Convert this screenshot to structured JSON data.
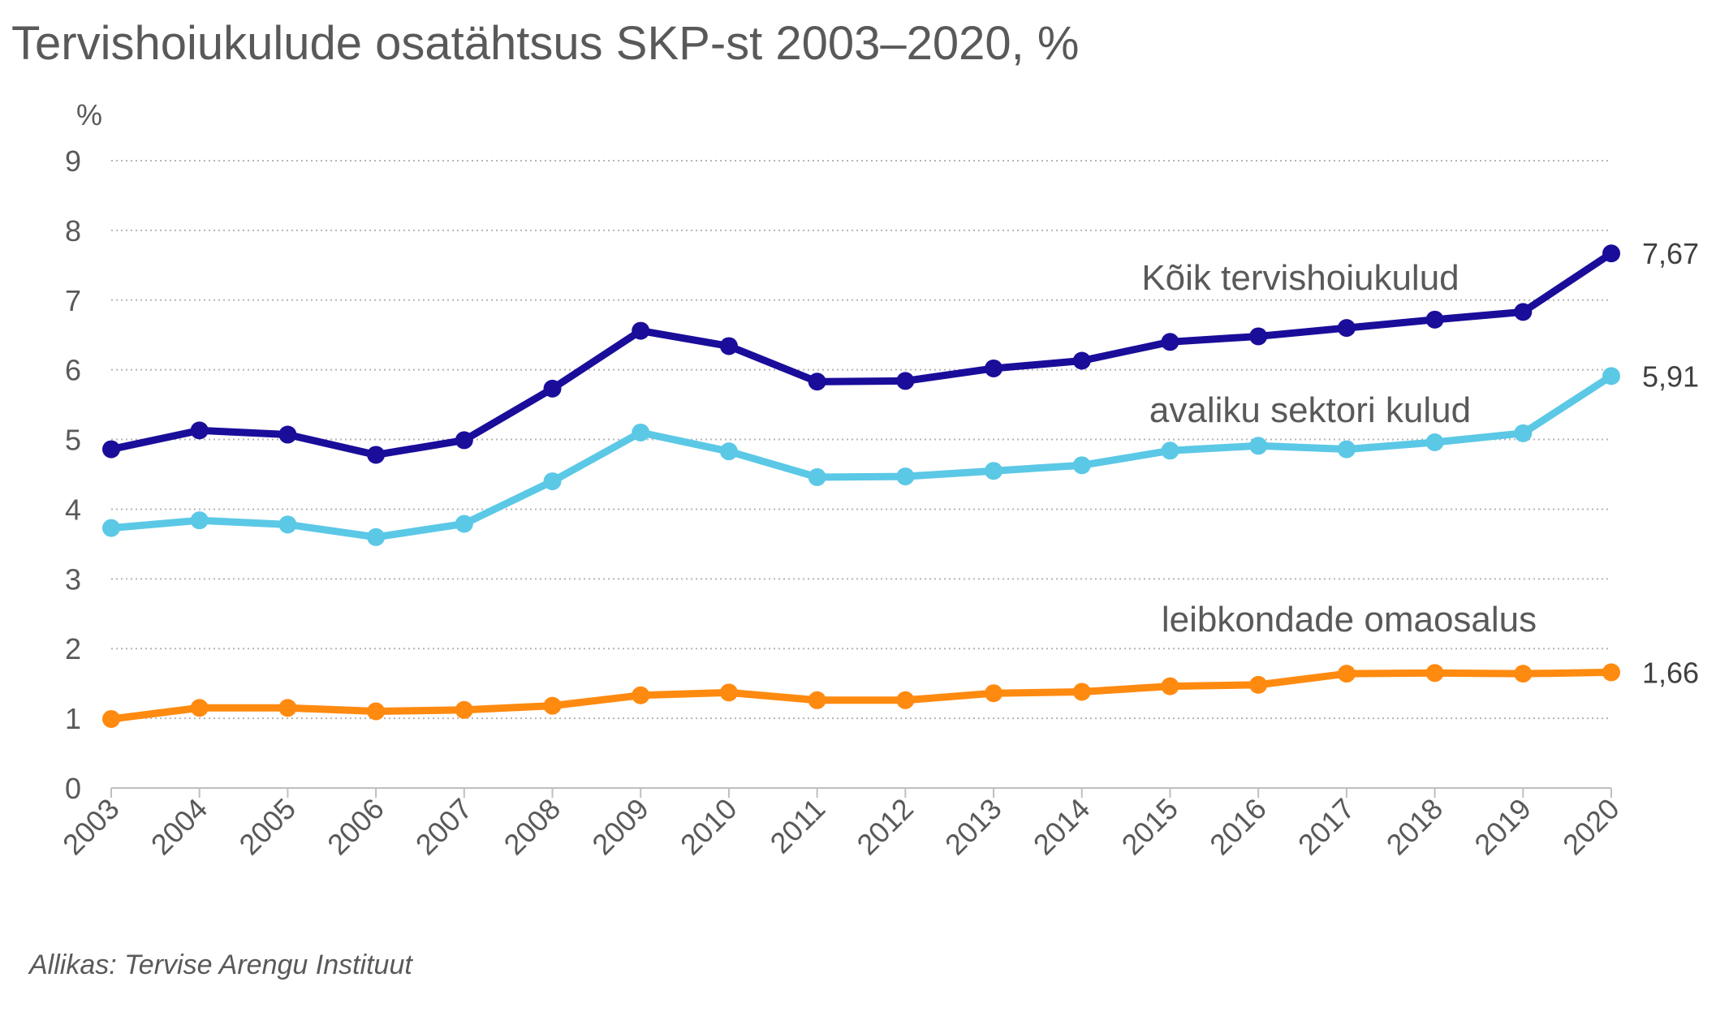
{
  "title": "Tervishoiukulude osatähtsus SKP-st 2003–2020, %",
  "source": "Allikas: Tervise Arengu Instituut",
  "chart_data": {
    "type": "line",
    "title": "Tervishoiukulude osatähtsus SKP-st 2003–2020, %",
    "ylabel": "%",
    "xlabel": "",
    "ylim": [
      0,
      9
    ],
    "yticks": [
      "0",
      "1",
      "2",
      "3",
      "4",
      "5",
      "6",
      "7",
      "8",
      "9"
    ],
    "grid": true,
    "x": [
      "2003",
      "2004",
      "2005",
      "2006",
      "2007",
      "2008",
      "2009",
      "2010",
      "2011",
      "2012",
      "2013",
      "2014",
      "2015",
      "2016",
      "2017",
      "2018",
      "2019",
      "2020"
    ],
    "series": [
      {
        "name": "Kõik tervishoiukulud",
        "color": "#1a0d9a",
        "values": [
          4.86,
          5.13,
          5.07,
          4.78,
          4.99,
          5.73,
          6.56,
          6.34,
          5.83,
          5.84,
          6.02,
          6.13,
          6.4,
          6.48,
          6.6,
          6.72,
          6.83,
          7.67
        ],
        "end_label": "7,67"
      },
      {
        "name": "avaliku sektori kulud",
        "color": "#5bc8e6",
        "values": [
          3.73,
          3.84,
          3.78,
          3.6,
          3.79,
          4.4,
          5.1,
          4.83,
          4.46,
          4.47,
          4.55,
          4.63,
          4.84,
          4.91,
          4.86,
          4.96,
          5.09,
          5.91
        ],
        "end_label": "5,91"
      },
      {
        "name": "leibkondade omaosalus",
        "color": "#ff8a10",
        "values": [
          0.99,
          1.15,
          1.15,
          1.1,
          1.12,
          1.18,
          1.33,
          1.37,
          1.26,
          1.26,
          1.36,
          1.38,
          1.46,
          1.48,
          1.64,
          1.65,
          1.64,
          1.66
        ],
        "end_label": "1,66"
      }
    ]
  }
}
